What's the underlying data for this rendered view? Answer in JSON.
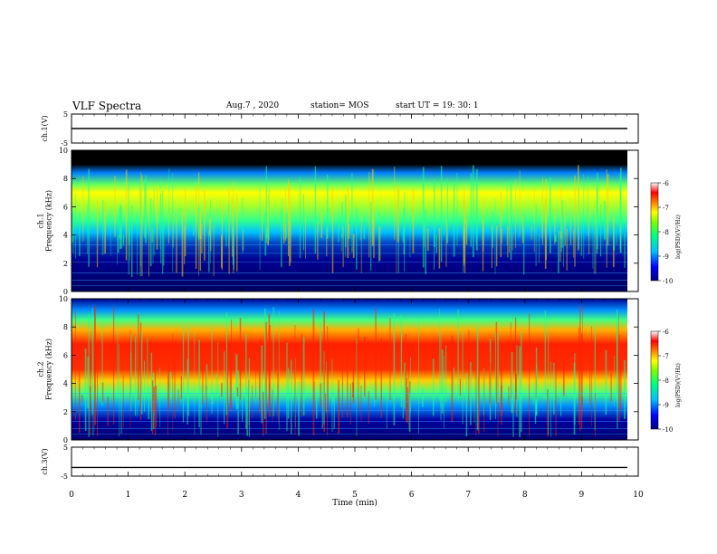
{
  "header": {
    "title": "VLF Spectra",
    "date": "Aug.7  , 2020",
    "station": "station= MOS",
    "start_ut": "start  UT =   19: 30: 1"
  },
  "chart_data": [
    {
      "type": "line",
      "panel": "ch1-voltage",
      "ylabel": "ch.1(V)",
      "ylim": [
        -5,
        5
      ],
      "y_ticks": [
        "5",
        "-5"
      ],
      "xlim": [
        0,
        10
      ],
      "series": [
        {
          "values_description_free": true,
          "constant_value": 0
        }
      ]
    },
    {
      "type": "heatmap",
      "panel": "ch1-spectrogram",
      "ylabel": "ch.1\nFrequency (kHz)",
      "ylim": [
        0,
        10
      ],
      "y_ticks": [
        "0",
        "2",
        "4",
        "6",
        "8",
        "10"
      ],
      "xlim": [
        0,
        10
      ],
      "colorbar": {
        "label": "log(PSD)(V²/Hz)",
        "range": [
          -10,
          -6
        ],
        "ticks": [
          "-6",
          "-7",
          "-8",
          "-9",
          "-10"
        ]
      }
    },
    {
      "type": "heatmap",
      "panel": "ch2-spectrogram",
      "ylabel": "ch.2\nFrequency (kHz)",
      "ylim": [
        0,
        10
      ],
      "y_ticks": [
        "0",
        "2",
        "4",
        "6",
        "8",
        "10"
      ],
      "xlim": [
        0,
        10
      ],
      "colorbar": {
        "label": "log(PSD)(V²/Hz)",
        "range": [
          -10,
          -6
        ],
        "ticks": [
          "-6",
          "-7",
          "-8",
          "-9",
          "-10"
        ]
      }
    },
    {
      "type": "line",
      "panel": "ch3-voltage",
      "ylabel": "ch.3(V)",
      "ylim": [
        -5,
        5
      ],
      "y_ticks": [
        "5",
        "-5"
      ],
      "xlim": [
        0,
        10
      ],
      "x_ticks": [
        "0",
        "1",
        "2",
        "3",
        "4",
        "5",
        "6",
        "7",
        "8",
        "9",
        "10"
      ],
      "xlabel": "Time  (min)",
      "series": [
        {
          "constant_value": -2
        }
      ]
    }
  ]
}
